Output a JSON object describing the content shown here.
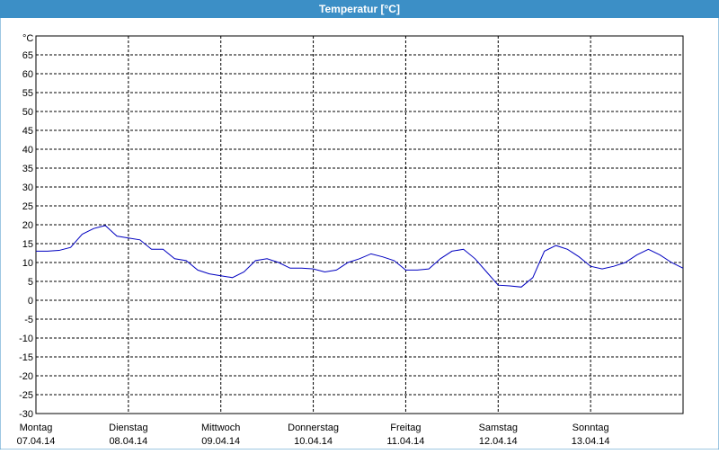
{
  "chart_data": {
    "type": "line",
    "title": "Temperatur [°C]",
    "y_unit": "°C",
    "xlim": [
      0,
      7
    ],
    "ylim": [
      -30,
      70
    ],
    "yticks": [
      -30,
      -25,
      -20,
      -15,
      -10,
      -5,
      0,
      5,
      10,
      15,
      20,
      25,
      30,
      35,
      40,
      45,
      50,
      55,
      60,
      65
    ],
    "xticks": [
      {
        "value": 0,
        "label": "Montag",
        "date": "07.04.14"
      },
      {
        "value": 1,
        "label": "Dienstag",
        "date": "08.04.14"
      },
      {
        "value": 2,
        "label": "Mittwoch",
        "date": "09.04.14"
      },
      {
        "value": 3,
        "label": "Donnerstag",
        "date": "10.04.14"
      },
      {
        "value": 4,
        "label": "Freitag",
        "date": "11.04.14"
      },
      {
        "value": 5,
        "label": "Samstag",
        "date": "12.04.14"
      },
      {
        "value": 6,
        "label": "Sonntag",
        "date": "13.04.14"
      }
    ],
    "grid": true,
    "x": [
      0,
      0.125,
      0.25,
      0.375,
      0.5,
      0.625,
      0.75,
      0.875,
      1,
      1.125,
      1.25,
      1.375,
      1.5,
      1.625,
      1.75,
      1.875,
      2,
      2.125,
      2.25,
      2.375,
      2.5,
      2.625,
      2.75,
      2.875,
      3,
      3.125,
      3.25,
      3.375,
      3.5,
      3.625,
      3.75,
      3.875,
      4,
      4.125,
      4.25,
      4.375,
      4.5,
      4.625,
      4.75,
      4.875,
      5,
      5.125,
      5.25,
      5.375,
      5.5,
      5.625,
      5.75,
      5.875,
      6,
      6.125,
      6.25,
      6.375,
      6.5,
      6.625,
      6.75,
      6.875,
      7
    ],
    "series": [
      {
        "color": "#0000c0",
        "values": [
          13,
          13,
          13.2,
          14,
          17.5,
          19,
          19.8,
          17,
          16.5,
          16,
          13.5,
          13.5,
          11,
          10.5,
          8,
          7,
          6.5,
          6,
          7.5,
          10.5,
          11,
          10,
          8.5,
          8.5,
          8.3,
          7.5,
          8,
          10,
          11,
          12.3,
          11.5,
          10.5,
          8,
          8,
          8.3,
          11,
          13,
          13.5,
          11,
          7.5,
          4,
          3.8,
          3.5,
          6,
          13,
          14.5,
          13.5,
          11.5,
          9,
          8.3,
          9,
          10,
          12,
          13.5,
          12,
          10,
          8.5
        ]
      }
    ]
  }
}
